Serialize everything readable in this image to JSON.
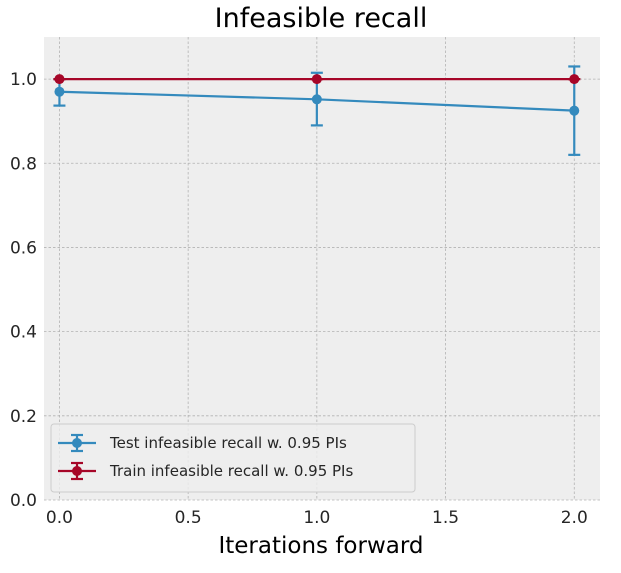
{
  "chart_data": {
    "type": "line",
    "title": "Infeasible recall",
    "xlabel": "Iterations forward",
    "ylabel": "",
    "xlim": [
      -0.06,
      2.1
    ],
    "ylim": [
      0.0,
      1.1
    ],
    "x_ticks": [
      0.0,
      0.5,
      1.0,
      1.5,
      2.0
    ],
    "x_tick_labels": [
      "0.0",
      "0.5",
      "1.0",
      "1.5",
      "2.0"
    ],
    "y_ticks": [
      0.0,
      0.2,
      0.4,
      0.6,
      0.8,
      1.0
    ],
    "y_tick_labels": [
      "0.0",
      "0.2",
      "0.4",
      "0.6",
      "0.8",
      "1.0"
    ],
    "grid": true,
    "legend_position": "lower-left",
    "series": [
      {
        "name": "Test infeasible recall w. 0.95 PIs",
        "color": "#348abd",
        "x": [
          0,
          1,
          2
        ],
        "y": [
          0.97,
          0.952,
          0.925
        ],
        "err_low": [
          0.937,
          0.89,
          0.82
        ],
        "err_high": [
          1.0,
          1.015,
          1.03
        ]
      },
      {
        "name": "Train infeasible recall w. 0.95 PIs",
        "color": "#a60628",
        "x": [
          0,
          1,
          2
        ],
        "y": [
          1.0,
          1.0,
          1.0
        ],
        "err_low": [
          1.0,
          1.0,
          1.0
        ],
        "err_high": [
          1.0,
          1.0,
          1.0
        ]
      }
    ]
  }
}
